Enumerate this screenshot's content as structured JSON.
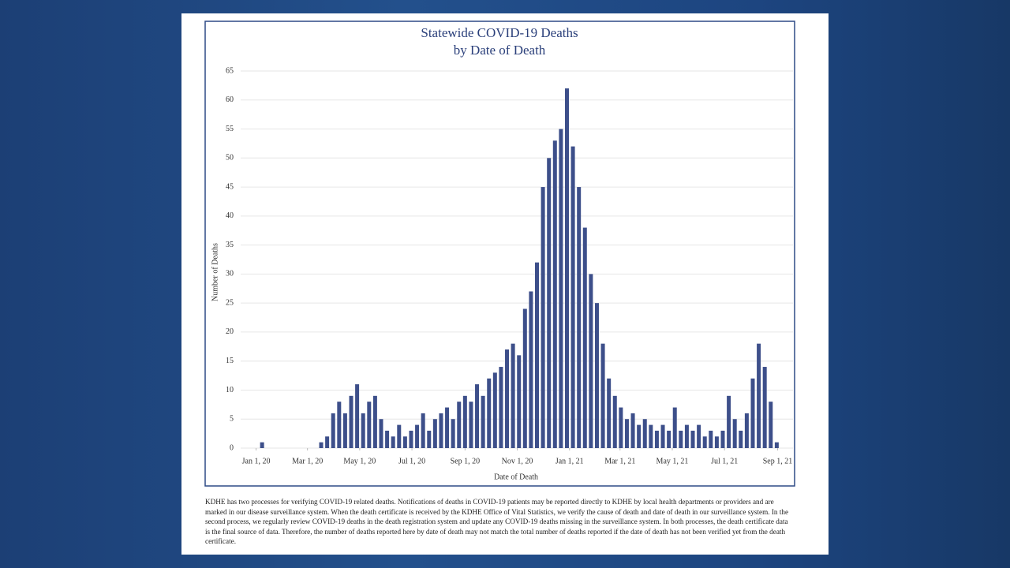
{
  "chart_data": {
    "type": "bar",
    "title": "Statewide COVID-19 Deaths",
    "subtitle": "by Date of Death",
    "y_label": "Number of Deaths",
    "x_label": "Date of Death",
    "color": "#3d4f8a",
    "grid": true,
    "xlim": [
      "2019-12-14",
      "2021-09-19"
    ],
    "xticks": [
      {
        "value": "2020-01-01",
        "label": "Jan 1, 20"
      },
      {
        "value": "2020-03-01",
        "label": "Mar 1, 20"
      },
      {
        "value": "2020-05-01",
        "label": "May 1, 20"
      },
      {
        "value": "2020-07-01",
        "label": "Jul 1, 20"
      },
      {
        "value": "2020-09-01",
        "label": "Sep 1, 20"
      },
      {
        "value": "2020-11-01",
        "label": "Nov 1, 20"
      },
      {
        "value": "2021-01-01",
        "label": "Jan 1, 21"
      },
      {
        "value": "2021-03-01",
        "label": "Mar 1, 21"
      },
      {
        "value": "2021-05-01",
        "label": "May 1, 21"
      },
      {
        "value": "2021-07-01",
        "label": "Jul 1, 21"
      },
      {
        "value": "2021-09-01",
        "label": "Sep 1, 21"
      }
    ],
    "ylim": [
      0,
      65
    ],
    "yticks": [
      0,
      5,
      10,
      15,
      20,
      25,
      30,
      35,
      40,
      45,
      50,
      55,
      60,
      65
    ],
    "x": [
      "2020-01-08",
      "2020-03-10",
      "2020-03-17",
      "2020-03-24",
      "2020-03-31",
      "2020-04-07",
      "2020-04-14",
      "2020-04-21",
      "2020-04-28",
      "2020-05-05",
      "2020-05-12",
      "2020-05-19",
      "2020-05-26",
      "2020-06-02",
      "2020-06-09",
      "2020-06-16",
      "2020-06-23",
      "2020-06-30",
      "2020-07-07",
      "2020-07-14",
      "2020-07-21",
      "2020-07-28",
      "2020-08-04",
      "2020-08-11",
      "2020-08-18",
      "2020-08-25",
      "2020-09-01",
      "2020-09-08",
      "2020-09-15",
      "2020-09-22",
      "2020-09-29",
      "2020-10-06",
      "2020-10-13",
      "2020-10-20",
      "2020-10-27",
      "2020-11-03",
      "2020-11-10",
      "2020-11-17",
      "2020-11-24",
      "2020-12-01",
      "2020-12-08",
      "2020-12-15",
      "2020-12-22",
      "2020-12-29",
      "2021-01-05",
      "2021-01-12",
      "2021-01-19",
      "2021-01-26",
      "2021-02-02",
      "2021-02-09",
      "2021-02-16",
      "2021-02-23",
      "2021-03-02",
      "2021-03-09",
      "2021-03-16",
      "2021-03-23",
      "2021-03-30",
      "2021-04-06",
      "2021-04-13",
      "2021-04-20",
      "2021-04-27",
      "2021-05-04",
      "2021-05-11",
      "2021-05-18",
      "2021-05-25",
      "2021-06-01",
      "2021-06-08",
      "2021-06-15",
      "2021-06-22",
      "2021-06-29",
      "2021-07-06",
      "2021-07-13",
      "2021-07-20",
      "2021-07-27",
      "2021-08-03",
      "2021-08-10",
      "2021-08-17",
      "2021-08-24",
      "2021-08-31"
    ],
    "values": [
      1,
      0,
      1,
      2,
      6,
      8,
      6,
      9,
      11,
      6,
      8,
      9,
      5,
      3,
      2,
      4,
      2,
      3,
      4,
      6,
      3,
      5,
      6,
      7,
      5,
      8,
      9,
      8,
      11,
      9,
      12,
      13,
      14,
      17,
      18,
      16,
      24,
      27,
      32,
      45,
      50,
      53,
      55,
      62,
      52,
      45,
      38,
      30,
      25,
      18,
      12,
      9,
      7,
      5,
      6,
      4,
      5,
      4,
      3,
      4,
      3,
      7,
      3,
      4,
      3,
      4,
      2,
      3,
      2,
      3,
      9,
      5,
      3,
      6,
      12,
      18,
      14,
      8,
      1
    ]
  },
  "footnote": "KDHE has two processes for verifying COVID-19 related deaths. Notifications of deaths in COVID-19 patients may be reported directly to KDHE by local health departments or providers and are marked in our disease surveillance system. When the death certificate is received by the KDHE Office of Vital Statistics, we verify the cause of death and date of death in our surveillance system. In the second process, we regularly review COVID-19 deaths in the death registration system and update any COVID-19 deaths missing in the surveillance system. In both processes, the death certificate data is the final source of data. Therefore, the number of deaths reported here by date of death may not match the total number of deaths reported if the date of death has not been verified yet from the death certificate."
}
